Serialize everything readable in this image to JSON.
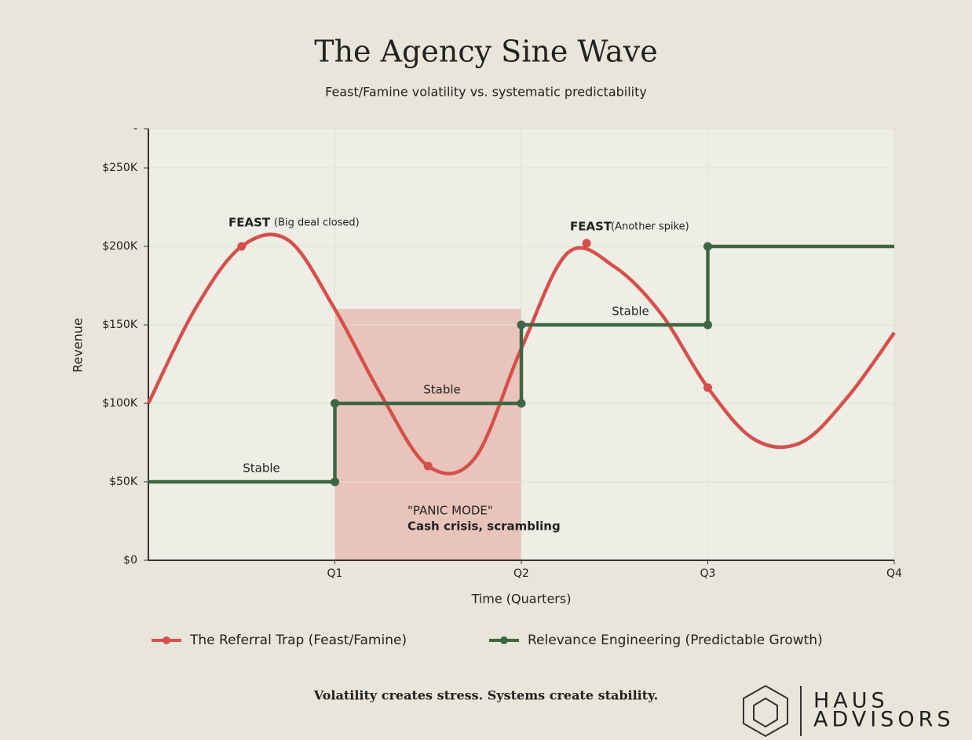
{
  "chart_data": {
    "type": "line",
    "title": "The Agency Sine Wave",
    "subtitle": "Feast/Famine volatility vs. systematic predictability",
    "x_label": "Time (Quarters)",
    "y_label": "Revenue",
    "xlim": [
      0,
      4
    ],
    "xticks": [
      {
        "value": 1,
        "label": "Q1"
      },
      {
        "value": 2,
        "label": "Q2"
      },
      {
        "value": 3,
        "label": "Q3"
      },
      {
        "value": 4,
        "label": "Q4"
      }
    ],
    "ylim": [
      0,
      275000
    ],
    "yticks": [
      {
        "value": 0,
        "label": "$0"
      },
      {
        "value": 50000,
        "label": "$50K"
      },
      {
        "value": 100000,
        "label": "$100K"
      },
      {
        "value": 150000,
        "label": "$150K"
      },
      {
        "value": 200000,
        "label": "$200K"
      },
      {
        "value": 250000,
        "label": "$250K"
      },
      {
        "value": 275000,
        "label": "-"
      }
    ],
    "grid": true,
    "highlight": {
      "xrange": [
        1,
        2
      ],
      "yrange": [
        0,
        160000
      ],
      "color": "#e8c4bb"
    },
    "series": [
      {
        "name": "The Referral Trap (Feast/Famine)",
        "color": "#d6504b",
        "shape": "smooth",
        "x": [
          0,
          0.25,
          0.5,
          0.75,
          1,
          1.25,
          1.5,
          1.75,
          2,
          2.25,
          2.5,
          2.75,
          3,
          3.25,
          3.5,
          3.75,
          4
        ],
        "values": [
          100000,
          160000,
          200000,
          204000,
          160000,
          105000,
          60000,
          65000,
          135000,
          196000,
          187000,
          157000,
          110000,
          77000,
          75000,
          104000,
          145000
        ],
        "markers": {
          "x": [
            0.5,
            1.5,
            2.35,
            3
          ],
          "values": [
            200000,
            60000,
            202000,
            110000
          ]
        }
      },
      {
        "name": "Relevance Engineering (Predictable Growth)",
        "color": "#3f6643",
        "shape": "step",
        "x": [
          0,
          1,
          1,
          2,
          2,
          3,
          3,
          4
        ],
        "values": [
          50000,
          50000,
          100000,
          100000,
          150000,
          150000,
          200000,
          200000
        ],
        "markers": {
          "x": [
            1,
            1,
            2,
            2,
            3,
            3
          ],
          "values": [
            50000,
            100000,
            100000,
            150000,
            150000,
            200000
          ]
        }
      }
    ],
    "annotations": [
      {
        "text": "FEAST",
        "note": "(Big deal closed)"
      },
      {
        "text": "FEAST",
        "note": "(Another spike)"
      },
      {
        "text": "Stable"
      },
      {
        "text": "Stable"
      },
      {
        "text": "Stable"
      },
      {
        "text": "\"PANIC MODE\"",
        "note": "Cash crisis, scrambling"
      }
    ],
    "footer": "Volatility creates stress. Systems create stability.",
    "logo": {
      "line1": "HAUS",
      "line2": "ADVISORS"
    }
  }
}
